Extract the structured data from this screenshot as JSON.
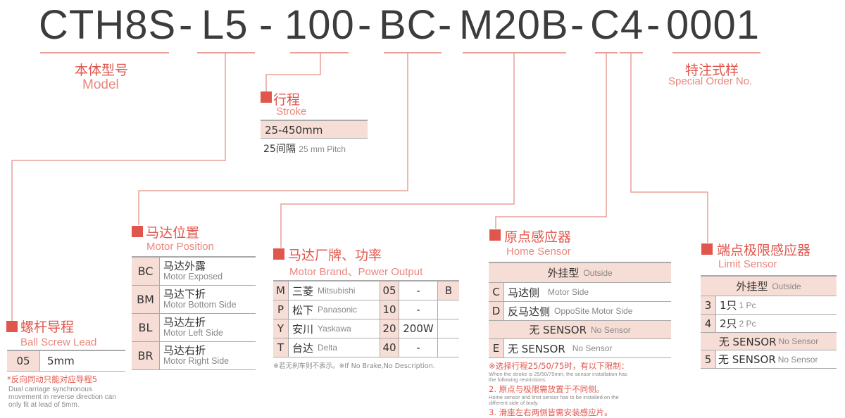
{
  "model_code": {
    "segments": [
      "CTH8S",
      "L5",
      "100",
      "BC",
      "M20B",
      "C4",
      "0001"
    ],
    "separator": "-"
  },
  "colors": {
    "accent": "#e0564c",
    "cell_fill": "#f6ddd6",
    "code_text": "#3c3c3c"
  },
  "model": {
    "cn": "本体型号",
    "en": "Model"
  },
  "special": {
    "cn": "特注式样",
    "en": "Special Order No."
  },
  "stroke": {
    "cn": "行程",
    "en": "Stroke",
    "range": "25-450mm",
    "pitch_cn": "25间隔",
    "pitch_en": "25 mm Pitch"
  },
  "lead": {
    "cn": "螺杆导程",
    "en": "Ball Screw Lead",
    "rows": [
      {
        "code": "05",
        "value": "5mm"
      }
    ],
    "note_cn": "*反向同动只能对应导程5",
    "note_en": [
      "Dual carriage synchronous",
      "movement in reverse direction can",
      "only fit at lead of 5mm."
    ]
  },
  "motor_position": {
    "cn": "马达位置",
    "en": "Motor Position",
    "rows": [
      {
        "code": "BC",
        "cn": "马达外露",
        "en": "Motor Exposed"
      },
      {
        "code": "BM",
        "cn": "马达下折",
        "en": "Motor Bottom Side"
      },
      {
        "code": "BL",
        "cn": "马达左折",
        "en": "Motor Left Side"
      },
      {
        "code": "BR",
        "cn": "马达右折",
        "en": "Motor Right Side"
      }
    ]
  },
  "motor_brand": {
    "cn": "马达厂牌、功率",
    "en": "Motor Brand、Power Output",
    "rows": [
      {
        "code": "M",
        "cn": "三菱",
        "en": "Mitsubishi",
        "pcode": "05",
        "power": "-",
        "brake": "B"
      },
      {
        "code": "P",
        "cn": "松下",
        "en": "Panasonic",
        "pcode": "10",
        "power": "-",
        "brake": ""
      },
      {
        "code": "Y",
        "cn": "安川",
        "en": "Yaskawa",
        "pcode": "20",
        "power": "200W",
        "brake": ""
      },
      {
        "code": "T",
        "cn": "台达",
        "en": "Delta",
        "pcode": "40",
        "power": "-",
        "brake": ""
      }
    ],
    "note": "※若无刹车则不表示。※If No Brake,No Description."
  },
  "home_sensor": {
    "cn": "原点感应器",
    "en": "Home Sensor",
    "outside_cn": "外挂型",
    "outside_en": "Outside",
    "rows": [
      {
        "code": "C",
        "cn": "马达侧",
        "en": "Motor Side"
      },
      {
        "code": "D",
        "cn": "反马达侧",
        "en": "OppoSite Motor Side"
      }
    ],
    "none_cn": "无 SENSOR",
    "none_en": "No Sensor",
    "none_row": {
      "code": "E",
      "cn": "无 SENSOR",
      "en": "No Sensor"
    },
    "notes": [
      {
        "cn": "※选择行程25/50/75时，有以下限制：",
        "en": [
          "When the stroke is 25/50/75mm, the sensor installation has",
          "the following restrictions:"
        ]
      },
      {
        "cn": "2. 原点与极限需放置于不同侧。",
        "en": [
          "Home sensor and limit sensor has to be installed on the",
          "different side of body."
        ]
      },
      {
        "cn": "3. 滑座左右两侧皆需安装感应片。",
        "en": []
      }
    ]
  },
  "limit_sensor": {
    "cn": "端点极限感应器",
    "en": "Limit Sensor",
    "outside_cn": "外挂型",
    "outside_en": "Outside",
    "rows": [
      {
        "code": "3",
        "cn": "1只",
        "en": "1 Pc"
      },
      {
        "code": "4",
        "cn": "2只",
        "en": "2 Pc"
      }
    ],
    "none_cn": "无 SENSOR",
    "none_en": "No Sensor",
    "none_row": {
      "code": "5",
      "cn": "无 SENSOR",
      "en": "No Sensor"
    }
  }
}
